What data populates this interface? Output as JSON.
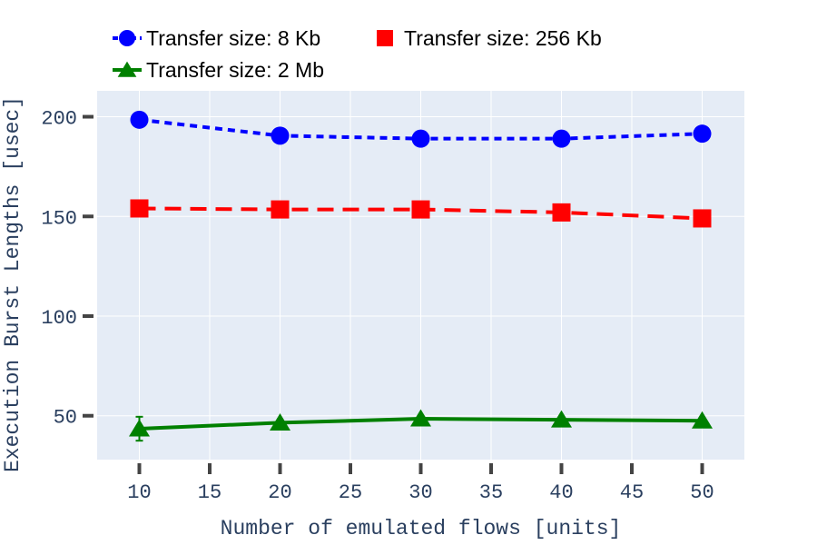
{
  "chart_data": {
    "type": "line",
    "xlabel": "Number of emulated flows [units]",
    "ylabel": "Execution Burst Lengths [usec]",
    "x": [
      10,
      20,
      30,
      40,
      50
    ],
    "xlim": [
      7,
      53
    ],
    "ylim": [
      28,
      213
    ],
    "xticks": [
      10,
      15,
      20,
      25,
      30,
      35,
      40,
      45,
      50
    ],
    "yticks": [
      50,
      100,
      150,
      200
    ],
    "grid": true,
    "legend_position": "top",
    "series": [
      {
        "name": "Transfer size: 8 Kb",
        "values": [
          198.5,
          190.5,
          189.0,
          189.0,
          191.5
        ],
        "color": "#0000ff",
        "marker": "circle",
        "dash": "dash",
        "error": [
          0,
          0,
          0,
          0,
          0
        ]
      },
      {
        "name": "Transfer size: 256 Kb",
        "values": [
          154.0,
          153.5,
          153.5,
          152.0,
          149.0
        ],
        "color": "#ff0000",
        "marker": "square",
        "dash": "longdash",
        "error": [
          0,
          0,
          0,
          0,
          0
        ]
      },
      {
        "name": "Transfer size: 2 Mb",
        "values": [
          43.5,
          46.5,
          48.5,
          48.0,
          47.5
        ],
        "color": "#008000",
        "marker": "triangle-up",
        "dash": "solid",
        "error": [
          6.0,
          0,
          0,
          0,
          0
        ]
      }
    ]
  },
  "colors": {
    "plot_background": "#e5ecf6",
    "grid": "#ffffff",
    "tick_text": "#2a3f5f",
    "tick_mark": "#444444"
  }
}
